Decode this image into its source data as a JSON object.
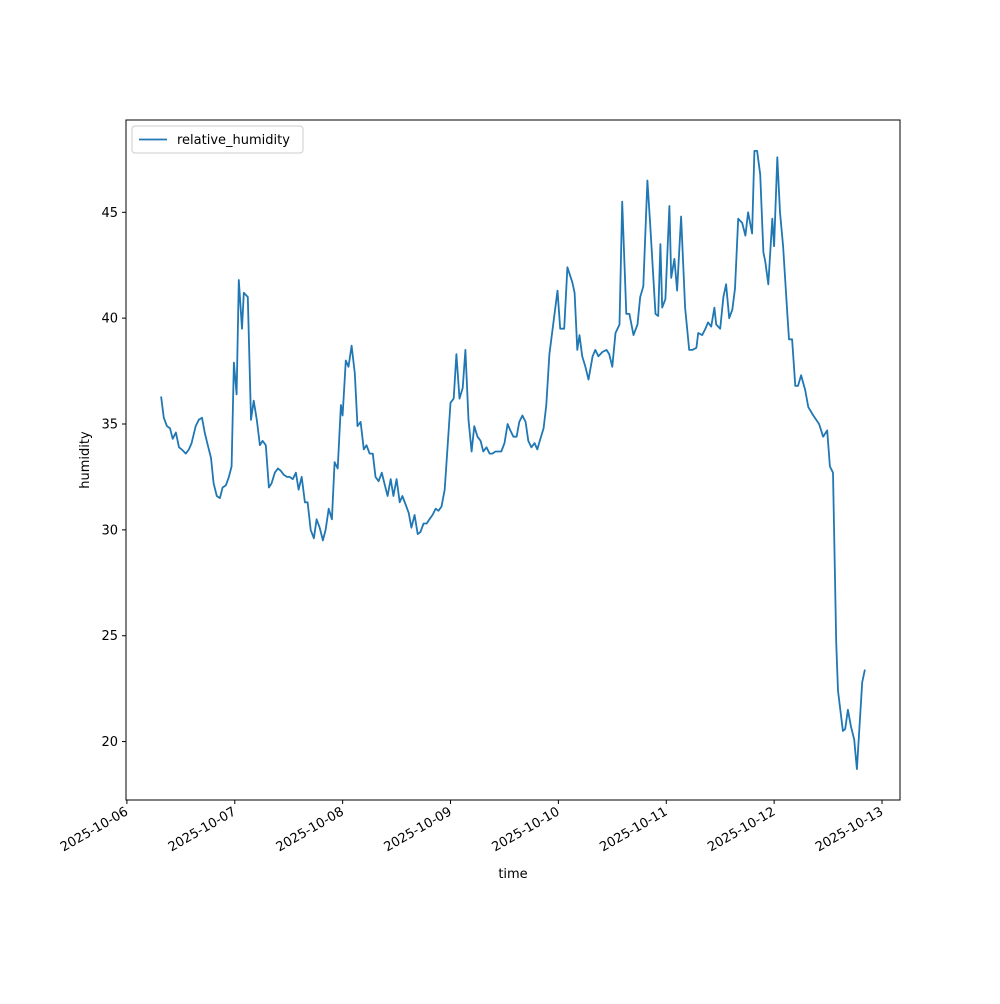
{
  "chart_data": {
    "type": "line",
    "title": "",
    "xlabel": "time",
    "ylabel": "humidity",
    "x_units": "hours since 2025-10-06 00:00",
    "xlim": [
      -0.2,
      172
    ],
    "ylim": [
      17.24,
      49.36
    ],
    "grid": false,
    "legend_position": "upper-left",
    "x_ticks": [
      {
        "value": 0,
        "label": "2025-10-06"
      },
      {
        "value": 24,
        "label": "2025-10-07"
      },
      {
        "value": 48,
        "label": "2025-10-08"
      },
      {
        "value": 72,
        "label": "2025-10-09"
      },
      {
        "value": 96,
        "label": "2025-10-10"
      },
      {
        "value": 120,
        "label": "2025-10-11"
      },
      {
        "value": 144,
        "label": "2025-10-12"
      },
      {
        "value": 168,
        "label": "2025-10-13"
      }
    ],
    "y_ticks": [
      {
        "value": 20,
        "label": "20"
      },
      {
        "value": 25,
        "label": "25"
      },
      {
        "value": 30,
        "label": "30"
      },
      {
        "value": 35,
        "label": "35"
      },
      {
        "value": 40,
        "label": "40"
      },
      {
        "value": 45,
        "label": "45"
      }
    ],
    "series": [
      {
        "name": "relative_humidity",
        "color": "#1f77b4",
        "x": [
          7.6,
          8.2,
          8.9,
          9.6,
          10.2,
          10.9,
          11.6,
          12.2,
          13.1,
          13.8,
          14.4,
          15.3,
          16.0,
          16.7,
          17.3,
          18.0,
          18.7,
          19.3,
          20.0,
          20.7,
          21.3,
          22.0,
          22.7,
          23.3,
          23.8,
          24.4,
          24.9,
          25.6,
          26.0,
          26.9,
          27.6,
          28.2,
          28.9,
          29.6,
          30.2,
          30.9,
          31.6,
          32.2,
          32.9,
          33.6,
          34.2,
          34.9,
          35.6,
          36.2,
          36.9,
          37.6,
          38.2,
          38.9,
          39.6,
          40.2,
          40.9,
          41.6,
          42.2,
          42.9,
          43.6,
          44.2,
          44.9,
          45.6,
          46.2,
          46.9,
          47.6,
          48.0,
          48.7,
          49.3,
          50.0,
          50.7,
          51.3,
          52.0,
          52.7,
          53.3,
          54.0,
          54.7,
          55.3,
          56.0,
          56.7,
          57.3,
          58.0,
          58.7,
          59.3,
          60.0,
          60.7,
          61.3,
          62.0,
          62.7,
          63.3,
          64.0,
          64.7,
          65.3,
          66.0,
          66.7,
          67.3,
          68.0,
          68.7,
          69.3,
          70.0,
          70.7,
          71.3,
          72.0,
          72.7,
          73.3,
          74.0,
          74.7,
          75.3,
          76.0,
          76.7,
          77.3,
          78.0,
          78.7,
          79.3,
          80.0,
          80.7,
          81.3,
          82.0,
          82.7,
          83.3,
          84.0,
          84.7,
          85.3,
          86.0,
          86.7,
          87.3,
          88.0,
          88.7,
          89.3,
          90.0,
          90.7,
          91.3,
          92.0,
          92.7,
          93.3,
          94.0,
          95.8,
          96.4,
          97.3,
          98.0,
          99.1,
          99.6,
          100.2,
          100.7,
          101.3,
          102.0,
          102.7,
          103.6,
          104.2,
          104.9,
          105.8,
          106.7,
          107.3,
          108.0,
          108.7,
          109.6,
          110.2,
          111.1,
          111.8,
          112.7,
          113.6,
          114.2,
          114.9,
          115.8,
          116.4,
          117.6,
          118.2,
          118.7,
          119.1,
          119.8,
          120.7,
          121.1,
          121.8,
          122.4,
          123.3,
          124.2,
          125.1,
          125.8,
          126.7,
          127.1,
          128.0,
          128.7,
          129.3,
          130.0,
          130.7,
          131.1,
          132.0,
          132.7,
          133.3,
          134.0,
          134.7,
          135.3,
          136.0,
          136.9,
          137.6,
          138.2,
          139.1,
          139.6,
          140.2,
          140.9,
          141.6,
          142.0,
          142.7,
          143.6,
          144.0,
          144.7,
          145.3,
          146.0,
          146.9,
          147.3,
          148.0,
          148.7,
          149.3,
          150.0,
          150.9,
          151.6,
          152.7,
          154.0,
          154.9,
          155.8,
          156.4,
          157.1,
          157.8,
          158.2,
          159.3,
          159.8,
          160.4,
          161.1,
          161.8,
          162.4,
          163.6,
          164.2
        ],
        "y": [
          36.3,
          35.3,
          34.9,
          34.8,
          34.3,
          34.6,
          33.9,
          33.8,
          33.6,
          33.8,
          34.1,
          34.9,
          35.2,
          35.3,
          34.6,
          34.0,
          33.4,
          32.2,
          31.6,
          31.5,
          32.0,
          32.1,
          32.5,
          33.0,
          37.9,
          36.4,
          41.8,
          39.5,
          41.2,
          41.0,
          35.2,
          36.1,
          35.2,
          34.0,
          34.2,
          34.0,
          32.0,
          32.2,
          32.7,
          32.9,
          32.8,
          32.6,
          32.5,
          32.5,
          32.4,
          32.7,
          31.9,
          32.5,
          31.3,
          31.3,
          30.0,
          29.6,
          30.5,
          30.1,
          29.5,
          30.0,
          31.0,
          30.5,
          33.2,
          32.9,
          35.9,
          35.4,
          38.0,
          37.7,
          38.7,
          37.4,
          34.9,
          35.1,
          33.8,
          34.0,
          33.6,
          33.6,
          32.5,
          32.3,
          32.7,
          32.2,
          31.6,
          32.4,
          31.6,
          32.4,
          31.3,
          31.6,
          31.2,
          30.8,
          30.1,
          30.7,
          29.8,
          29.9,
          30.3,
          30.3,
          30.5,
          30.7,
          31.0,
          30.9,
          31.1,
          31.9,
          33.8,
          36.0,
          36.2,
          38.3,
          36.2,
          36.7,
          38.5,
          35.2,
          33.7,
          34.9,
          34.4,
          34.2,
          33.7,
          33.9,
          33.6,
          33.6,
          33.7,
          33.7,
          33.7,
          34.1,
          35.0,
          34.7,
          34.4,
          34.4,
          35.1,
          35.4,
          35.1,
          34.2,
          33.9,
          34.1,
          33.8,
          34.3,
          34.8,
          35.9,
          38.3,
          41.3,
          39.5,
          39.5,
          42.4,
          41.7,
          41.2,
          38.5,
          39.2,
          38.2,
          37.7,
          37.1,
          38.2,
          38.5,
          38.2,
          38.4,
          38.5,
          38.3,
          37.7,
          39.3,
          39.7,
          45.5,
          40.2,
          40.2,
          39.2,
          39.7,
          41.0,
          41.5,
          46.5,
          44.5,
          40.2,
          40.1,
          43.5,
          40.5,
          40.9,
          45.3,
          41.9,
          42.8,
          41.3,
          44.8,
          40.5,
          38.5,
          38.5,
          38.6,
          39.3,
          39.2,
          39.5,
          39.8,
          39.6,
          40.5,
          39.7,
          39.5,
          41.0,
          41.6,
          40.0,
          40.4,
          41.4,
          44.7,
          44.5,
          43.9,
          45.0,
          44.0,
          47.9,
          47.9,
          46.8,
          43.1,
          42.7,
          41.6,
          44.7,
          43.4,
          47.6,
          45.0,
          43.4,
          40.3,
          39.0,
          39.0,
          36.8,
          36.8,
          37.3,
          36.6,
          35.8,
          35.4,
          35.0,
          34.4,
          34.7,
          33.0,
          32.7,
          24.7,
          22.4,
          20.5,
          20.6,
          21.5,
          20.7,
          20.1,
          18.7,
          22.8,
          23.4
        ]
      }
    ]
  }
}
